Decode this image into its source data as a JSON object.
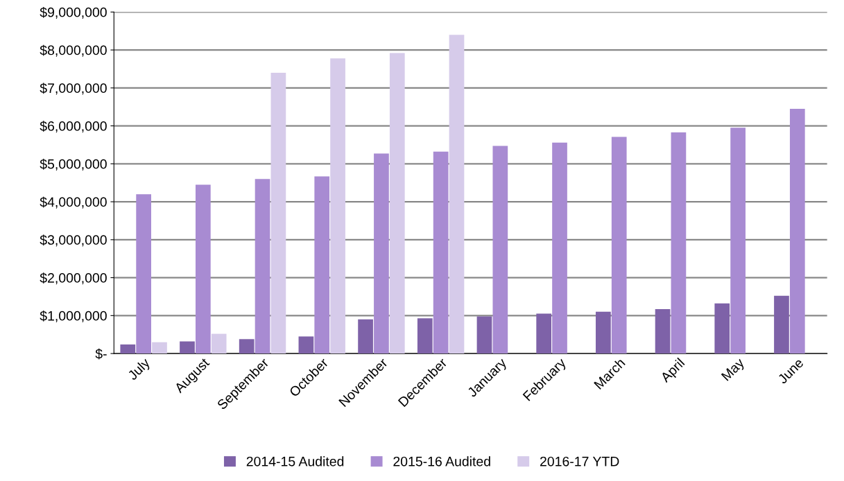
{
  "chart_data": {
    "type": "bar",
    "categories": [
      "July",
      "August",
      "September",
      "October",
      "November",
      "December",
      "January",
      "February",
      "March",
      "April",
      "May",
      "June"
    ],
    "series": [
      {
        "name": "2014-15 Audited",
        "color": "#7e62a8",
        "values": [
          240000,
          320000,
          380000,
          450000,
          900000,
          930000,
          980000,
          1050000,
          1100000,
          1170000,
          1320000,
          1520000
        ]
      },
      {
        "name": "2015-16 Audited",
        "color": "#a88bd2",
        "values": [
          4200000,
          4450000,
          4600000,
          4670000,
          5270000,
          5320000,
          5470000,
          5560000,
          5710000,
          5830000,
          5950000,
          6450000
        ]
      },
      {
        "name": "2016-17 YTD",
        "color": "#d6cbea",
        "values": [
          300000,
          520000,
          7400000,
          7780000,
          7920000,
          8400000,
          null,
          null,
          null,
          null,
          null,
          null
        ]
      }
    ],
    "ylim": [
      0,
      9000000
    ],
    "yticks": [
      {
        "value": 0,
        "label": "$-"
      },
      {
        "value": 1000000,
        "label": "$1,000,000"
      },
      {
        "value": 2000000,
        "label": "$2,000,000"
      },
      {
        "value": 3000000,
        "label": "$3,000,000"
      },
      {
        "value": 4000000,
        "label": "$4,000,000"
      },
      {
        "value": 5000000,
        "label": "$5,000,000"
      },
      {
        "value": 6000000,
        "label": "$6,000,000"
      },
      {
        "value": 7000000,
        "label": "$7,000,000"
      },
      {
        "value": 8000000,
        "label": "$8,000,000"
      },
      {
        "value": 9000000,
        "label": "$9,000,000"
      }
    ],
    "grid": "y",
    "legend": "bottom"
  }
}
